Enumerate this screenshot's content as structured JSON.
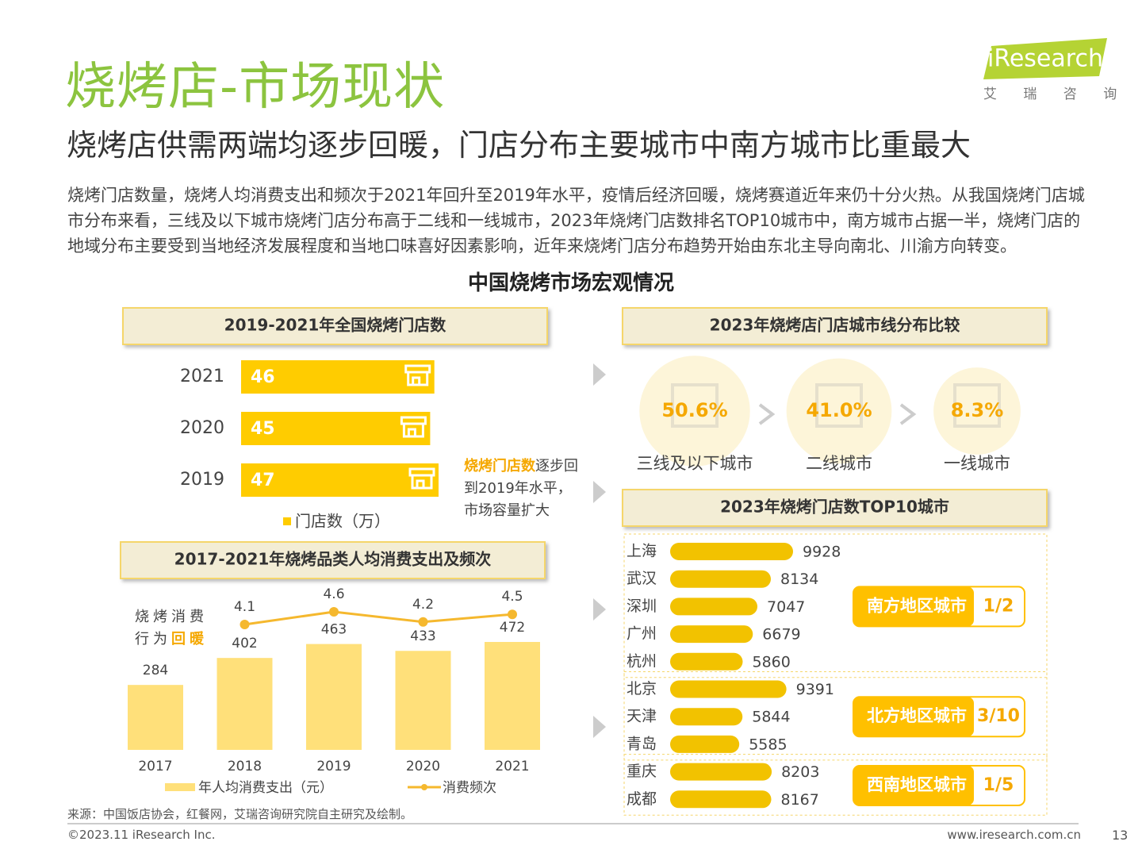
{
  "header": {
    "title": "烧烤店-市场现状",
    "subtitle": "烧烤店供需两端均逐步回暖，门店分布主要城市中南方城市比重最大"
  },
  "logo": {
    "brand": "iResearch",
    "name": "艾 瑞 咨 询"
  },
  "body": "烧烤门店数量，烧烤人均消费支出和频次于2021年回升至2019年水平，疫情后经济回暖，烧烤赛道近年来仍十分火热。从我国烧烤门店城市分布来看，三线及以下城市烧烤门店分布高于二线和一线城市，2023年烧烤门店数排名TOP10城市中，南方城市占据一半，烧烤门店的地域分布主要受到当地经济发展程度和当地口味喜好因素影响，近年来烧烤门店分布趋势开始由东北主导向南北、川渝方向转变。",
  "section_title": "中国烧烤市场宏观情况",
  "chart_data": [
    {
      "type": "bar",
      "title": "2019-2021年全国烧烤门店数",
      "categories": [
        "2021",
        "2020",
        "2019"
      ],
      "series": [
        {
          "name": "门店数（万）",
          "color": "#ffcc00",
          "values": [
            46,
            45,
            47
          ]
        }
      ],
      "annotation": {
        "highlight": "烧烤门店数",
        "text": "逐步回到2019年水平，市场容量扩大"
      }
    },
    {
      "type": "combo",
      "title": "2017-2021年烧烤品类人均消费支出及频次",
      "categories": [
        "2017",
        "2018",
        "2019",
        "2020",
        "2021"
      ],
      "series": [
        {
          "name": "年人均消费支出（元）",
          "type": "bar",
          "color": "#ffe07a",
          "values": [
            284,
            402,
            463,
            433,
            472
          ]
        },
        {
          "name": "消费频次",
          "type": "line",
          "color": "#f5b82e",
          "values": [
            null,
            4.1,
            4.6,
            4.2,
            4.5
          ]
        }
      ],
      "annotation": {
        "text": "烧烤消费行为",
        "highlight": "回暖"
      }
    },
    {
      "type": "circles",
      "title": "2023年烧烤店门店城市线分布比较",
      "categories": [
        "三线及以下城市",
        "二线城市",
        "一线城市"
      ],
      "values": [
        50.6,
        41.0,
        8.3
      ],
      "value_labels": [
        "50.6%",
        "41.0%",
        "8.3%"
      ],
      "color": "#f5a800"
    },
    {
      "type": "bar",
      "title": "2023年烧烤门店数TOP10城市",
      "color": "#f2c200",
      "groups": [
        {
          "name": "南方地区城市",
          "share": "1/2",
          "categories": [
            "上海",
            "武汉",
            "深圳",
            "广州",
            "杭州"
          ],
          "values": [
            9928,
            8134,
            7047,
            6679,
            5860
          ]
        },
        {
          "name": "北方地区城市",
          "share": "3/10",
          "categories": [
            "北京",
            "天津",
            "青岛"
          ],
          "values": [
            9391,
            5844,
            5585
          ]
        },
        {
          "name": "西南地区城市",
          "share": "1/5",
          "categories": [
            "重庆",
            "成都"
          ],
          "values": [
            8203,
            8167
          ]
        }
      ]
    }
  ],
  "footer": {
    "source": "来源：中国饭店协会，红餐网，艾瑞咨询研究院自主研究及绘制。",
    "copyright": "©2023.11 iResearch Inc.",
    "url": "www.iresearch.com.cn",
    "page": 13
  }
}
